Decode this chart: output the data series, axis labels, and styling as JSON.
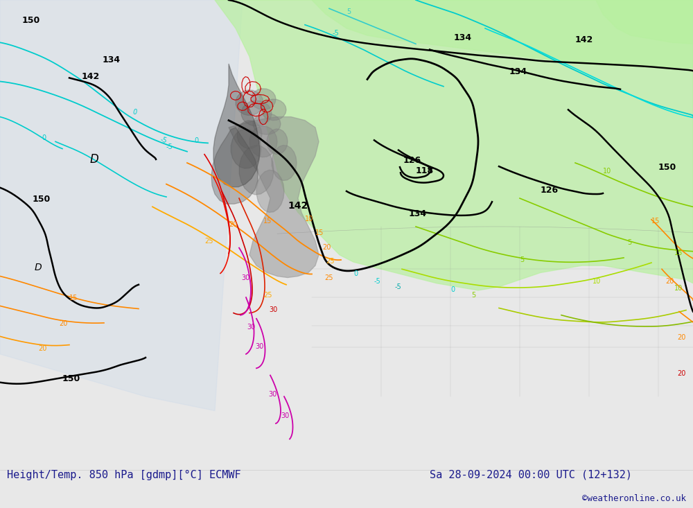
{
  "title_left": "Height/Temp. 850 hPa [gdmp][°C] ECMWF",
  "title_right": "Sa 28-09-2024 00:00 UTC (12+132)",
  "credit": "©weatheronline.co.uk",
  "title_color": "#1a1a8c",
  "credit_color": "#1a1a8c",
  "bg_color": "#e8e8e8",
  "map_bg": "#d8d8d8",
  "green_fill": "#b8f0a0",
  "figsize": [
    10.0,
    7.33
  ],
  "dpi": 100
}
